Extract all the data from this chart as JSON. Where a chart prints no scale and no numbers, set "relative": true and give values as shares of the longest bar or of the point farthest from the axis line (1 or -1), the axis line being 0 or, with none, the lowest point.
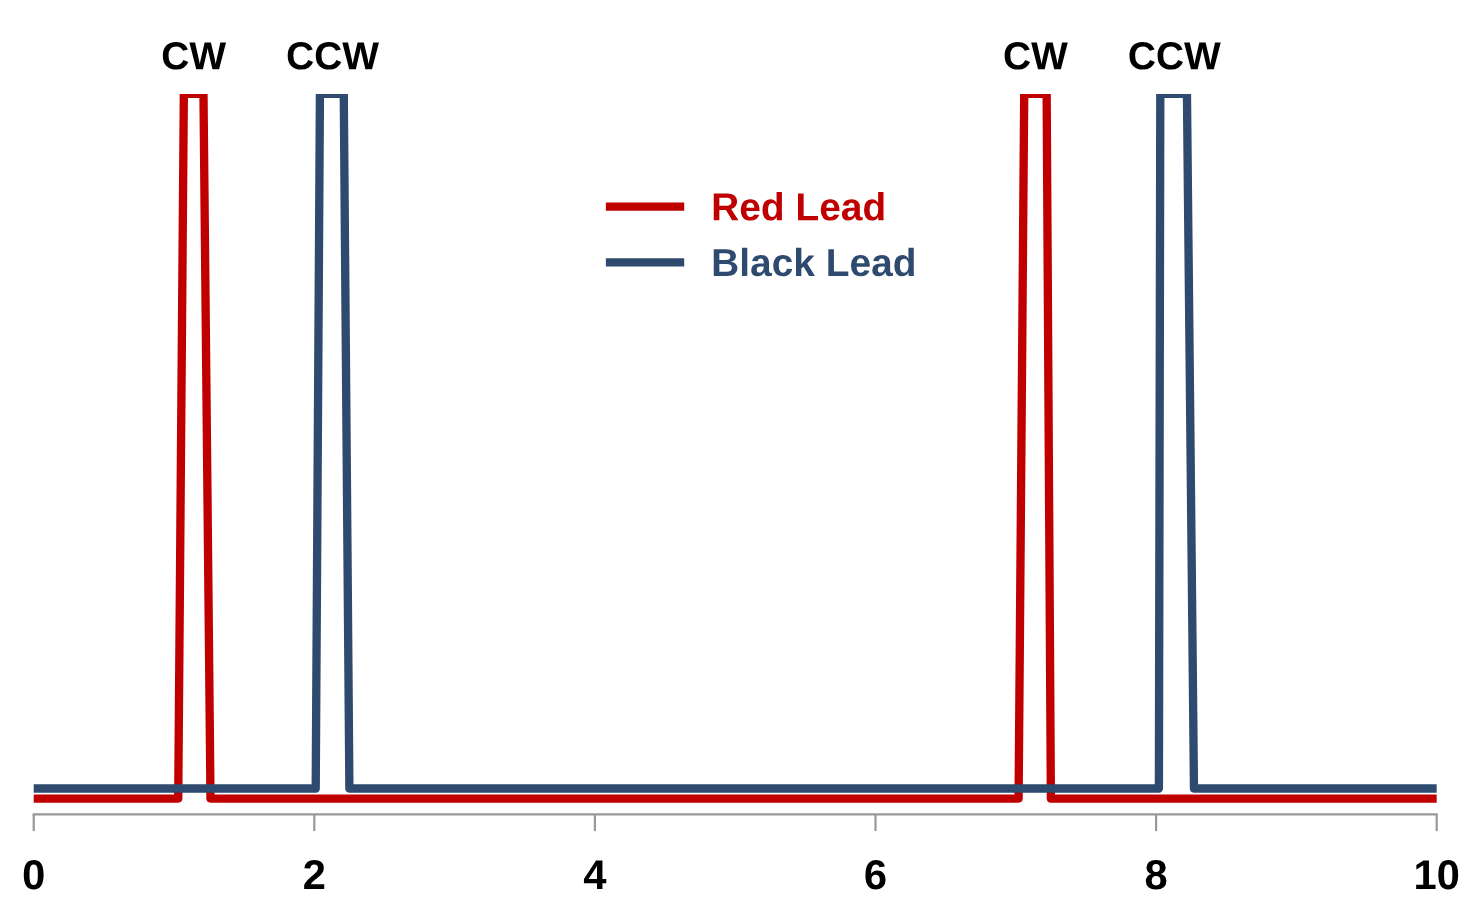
{
  "chart_data": {
    "type": "line",
    "relative": true,
    "xlim": [
      0,
      10
    ],
    "xticks": [
      0,
      2,
      4,
      6,
      8,
      10
    ],
    "grid": false,
    "legend": "top",
    "marker": "none",
    "line_style": "solid",
    "series": [
      {
        "name": "Red Lead",
        "color": "#c00000",
        "x": [
          0,
          1.03,
          1.07,
          1.21,
          1.26,
          7.02,
          7.06,
          7.22,
          7.25,
          10
        ],
        "values": [
          0.022,
          0.022,
          1,
          1,
          0.022,
          0.022,
          1,
          1,
          0.022,
          0.022
        ]
      },
      {
        "name": "Black Lead",
        "color": "#2e4a6e",
        "x": [
          0,
          2.01,
          2.04,
          2.21,
          2.25,
          8.02,
          8.03,
          8.22,
          8.27,
          10
        ],
        "values": [
          0.036,
          0.036,
          1,
          1,
          0.036,
          0.036,
          1,
          1,
          0.036,
          0.036
        ]
      }
    ],
    "annotations": [
      {
        "text": "CW",
        "x": 1.14,
        "y": 1
      },
      {
        "text": "CCW",
        "x": 2.13,
        "y": 1
      },
      {
        "text": "CW",
        "x": 7.14,
        "y": 1
      },
      {
        "text": "CCW",
        "x": 8.13,
        "y": 1
      }
    ]
  }
}
